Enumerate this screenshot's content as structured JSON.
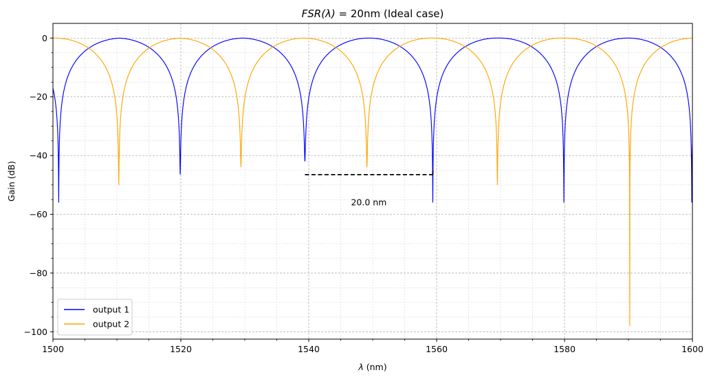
{
  "chart_data": {
    "type": "line",
    "title_prefix": "FSR(λ)",
    "title_suffix": " = 20nm (Ideal case)",
    "xlabel_prefix": "λ",
    "xlabel_suffix": " (nm)",
    "ylabel": "Gain (dB)",
    "xlim": [
      1500,
      1600
    ],
    "ylim": [
      -102.5,
      5
    ],
    "xticks": [
      1500,
      1520,
      1540,
      1560,
      1580,
      1600
    ],
    "xtick_labels": [
      "1500",
      "1520",
      "1540",
      "1560",
      "1580",
      "1600"
    ],
    "yticks": [
      0,
      -20,
      -40,
      -60,
      -80,
      -100
    ],
    "ytick_labels": [
      "0",
      "−20",
      "−40",
      "−60",
      "−80",
      "−100"
    ],
    "grid": true,
    "legend_position": "lower-left",
    "period_nm": 20,
    "series": [
      {
        "name": "output 1",
        "color": "#0000ff",
        "phase_deg": -90,
        "null_depths_db": [
          -56,
          -46.5,
          -42,
          -56
        ]
      },
      {
        "name": "output 2",
        "color": "#ffa500",
        "phase_deg": -90,
        "null_depths_db": [
          -50,
          -44,
          -44,
          -50,
          -98
        ]
      }
    ],
    "annotation": {
      "text": "20.0 nm",
      "x_start": 1539.4,
      "x_end": 1559.4,
      "y": -46.5,
      "text_x": 1549.4,
      "text_y": -56
    }
  }
}
